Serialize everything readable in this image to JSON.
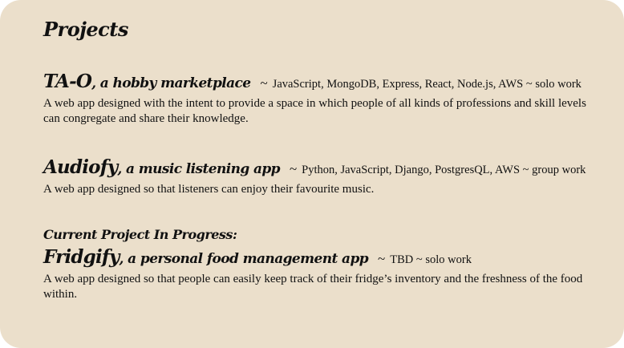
{
  "section": {
    "heading": "Projects",
    "current_label": "Current Project In Progress:"
  },
  "projects": [
    {
      "name": "TA-O",
      "subtitle": ", a hobby marketplace",
      "tilde": "~",
      "stack": "JavaScript, MongoDB, Express, React, Node.js, AWS ~ solo work",
      "description": "A web app designed with the intent to provide a space in which people of all kinds of professions and skill levels can congregate and share their knowledge."
    },
    {
      "name": "Audiofy",
      "subtitle": ", a music listening app",
      "tilde": "~",
      "stack": "Python, JavaScript, Django, PostgresQL,  AWS ~ group work",
      "description": "A web app designed so that listeners can enjoy their favourite music."
    },
    {
      "name": "Fridgify",
      "subtitle": ", a personal food management app",
      "tilde": "~",
      "stack": "TBD ~ solo work",
      "description": "A web app designed so that people can easily keep track of their fridge’s inventory and the freshness of the food within."
    }
  ]
}
